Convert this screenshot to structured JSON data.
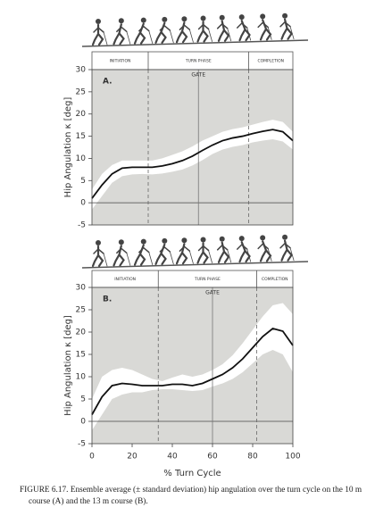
{
  "chart_data": [
    {
      "type": "line",
      "panel_label": "A.",
      "gate_label": "GATE",
      "phases": [
        "INITIATION",
        "TURN PHASE",
        "COMPLETION"
      ],
      "phase_bounds": [
        28,
        78
      ],
      "gate": 53,
      "ylabel": "Hip Angulation κ [deg]",
      "x": [
        0,
        5,
        10,
        15,
        20,
        25,
        30,
        35,
        40,
        45,
        50,
        55,
        60,
        65,
        70,
        75,
        80,
        85,
        90,
        95,
        100
      ],
      "values": [
        1,
        4,
        6.5,
        7.8,
        8,
        8,
        8,
        8.3,
        8.8,
        9.5,
        10.5,
        11.8,
        13,
        14,
        14.6,
        15,
        15.6,
        16.1,
        16.5,
        16,
        14
      ],
      "upper": [
        3,
        6.5,
        8.5,
        9.5,
        9.5,
        9.5,
        9.5,
        10,
        10.8,
        11.6,
        12.7,
        14,
        15,
        16,
        16.6,
        17,
        17.6,
        18.2,
        18.7,
        18.2,
        16
      ],
      "lower": [
        -1.5,
        1.5,
        4.5,
        6,
        6.4,
        6.5,
        6.4,
        6.6,
        7,
        7.5,
        8.4,
        9.6,
        11,
        12,
        12.6,
        13,
        13.6,
        14,
        14.3,
        13.8,
        12
      ],
      "color": "#111111",
      "band_color": "#ffffff",
      "background_color": "#d9d9d6",
      "xlim": [
        0,
        100
      ],
      "ylim": [
        -5,
        30
      ],
      "yticks": [
        -5,
        0,
        5,
        10,
        15,
        20,
        25,
        30
      ]
    },
    {
      "type": "line",
      "panel_label": "B.",
      "gate_label": "GATE",
      "phases": [
        "INITIATION",
        "TURN PHASE",
        "COMPLETION"
      ],
      "phase_bounds": [
        33,
        82
      ],
      "gate": 60,
      "ylabel": "Hip Angulation κ [deg]",
      "xlabel": "% Turn Cycle",
      "x": [
        0,
        5,
        10,
        15,
        20,
        25,
        30,
        35,
        40,
        45,
        50,
        55,
        60,
        65,
        70,
        75,
        80,
        85,
        90,
        95,
        100
      ],
      "values": [
        1.5,
        5.5,
        8,
        8.5,
        8.3,
        8,
        8,
        8,
        8.3,
        8.3,
        8,
        8.5,
        9.5,
        10.5,
        12,
        14,
        16.5,
        19,
        20.8,
        20.2,
        17
      ],
      "upper": [
        5,
        10,
        11.5,
        12,
        11.5,
        10.5,
        9.5,
        9,
        9.8,
        10.5,
        10,
        10.5,
        11.5,
        12.8,
        14.8,
        17.5,
        20.5,
        23.5,
        26,
        26.5,
        24
      ],
      "lower": [
        -2,
        1.5,
        5,
        6,
        6.5,
        6.5,
        7,
        7.2,
        7.2,
        7,
        6.8,
        7,
        7.8,
        8.5,
        9.5,
        11,
        13,
        15,
        16,
        15,
        11
      ],
      "color": "#111111",
      "band_color": "#ffffff",
      "background_color": "#d9d9d6",
      "xlim": [
        0,
        100
      ],
      "ylim": [
        -5,
        30
      ],
      "yticks": [
        -5,
        0,
        5,
        10,
        15,
        20,
        25,
        30
      ],
      "xticks": [
        0,
        20,
        40,
        60,
        80,
        100
      ]
    }
  ],
  "caption": "FIGURE 6.17.  Ensemble average (± standard deviation) hip angulation over the turn cycle on the 10 m course (A) and the 13 m course (B)."
}
